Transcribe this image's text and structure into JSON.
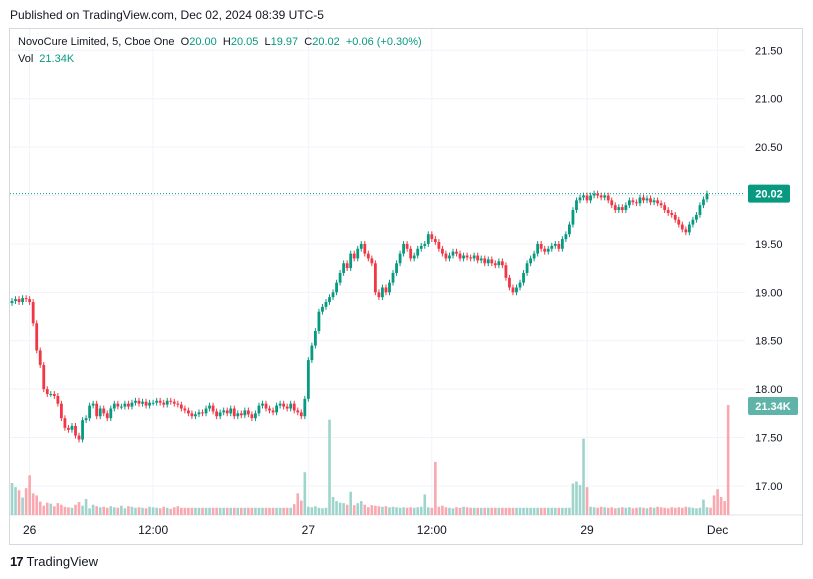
{
  "header": {
    "published": "Published on TradingView.com, Dec 02, 2024 08:39 UTC-5"
  },
  "legend": {
    "symbol": "NovoCure Limited, 5, Cboe One",
    "o_label": "O",
    "o": "20.00",
    "h_label": "H",
    "h": "20.05",
    "l_label": "L",
    "l": "19.97",
    "c_label": "C",
    "c": "20.02",
    "change": "+0.06 (+0.30%)",
    "vol_label": "Vol",
    "vol": "21.34K"
  },
  "footer": {
    "brand": "TradingView",
    "logo_glyph": "17"
  },
  "colors": {
    "up": "#089981",
    "down": "#f23645",
    "up_vol": "#9fd4cd",
    "down_vol": "#f8a8ae",
    "grid": "#f0f3fa"
  },
  "chart_data": {
    "type": "candlestick",
    "y_ticks": [
      "21.50",
      "21.00",
      "20.50",
      "20.00",
      "19.50",
      "19.00",
      "18.50",
      "18.00",
      "17.50",
      "17.00"
    ],
    "y_tick_values": [
      21.5,
      21.0,
      20.5,
      20.0,
      19.5,
      19.0,
      18.5,
      18.0,
      17.5,
      17.0
    ],
    "ylim": [
      16.7,
      21.72
    ],
    "x_ticks": [
      "26",
      "12:00",
      "27",
      "12:00",
      "29",
      "Dec"
    ],
    "x_tick_index": [
      5,
      40,
      84,
      119,
      163,
      200
    ],
    "last_price_label": "20.02",
    "last_price": 20.02,
    "last_volume_label": "21.34K",
    "last_volume": 21340,
    "vol_max": 21340,
    "closes": [
      18.91,
      18.93,
      18.9,
      18.94,
      18.93,
      18.9,
      18.68,
      18.4,
      18.25,
      18.0,
      17.95,
      17.95,
      17.93,
      17.85,
      17.7,
      17.6,
      17.58,
      17.62,
      17.52,
      17.48,
      17.68,
      17.7,
      17.83,
      17.85,
      17.72,
      17.8,
      17.75,
      17.7,
      17.8,
      17.85,
      17.82,
      17.82,
      17.85,
      17.82,
      17.86,
      17.88,
      17.85,
      17.87,
      17.83,
      17.86,
      17.86,
      17.88,
      17.86,
      17.84,
      17.88,
      17.87,
      17.85,
      17.84,
      17.8,
      17.78,
      17.75,
      17.72,
      17.74,
      17.76,
      17.75,
      17.8,
      17.83,
      17.77,
      17.72,
      17.76,
      17.78,
      17.75,
      17.8,
      17.72,
      17.75,
      17.73,
      17.78,
      17.74,
      17.7,
      17.75,
      17.83,
      17.85,
      17.8,
      17.78,
      17.76,
      17.83,
      17.85,
      17.82,
      17.8,
      17.85,
      17.78,
      17.76,
      17.72,
      17.9,
      18.3,
      18.45,
      18.6,
      18.8,
      18.85,
      18.9,
      18.95,
      19.0,
      19.1,
      19.2,
      19.3,
      19.25,
      19.4,
      19.35,
      19.45,
      19.5,
      19.4,
      19.35,
      19.3,
      19.0,
      18.95,
      19.05,
      19.0,
      19.1,
      19.2,
      19.3,
      19.4,
      19.5,
      19.45,
      19.35,
      19.38,
      19.45,
      19.48,
      19.5,
      19.6,
      19.55,
      19.52,
      19.45,
      19.4,
      19.35,
      19.38,
      19.42,
      19.4,
      19.35,
      19.38,
      19.36,
      19.35,
      19.38,
      19.33,
      19.35,
      19.3,
      19.34,
      19.3,
      19.28,
      19.32,
      19.28,
      19.15,
      19.05,
      19.0,
      19.05,
      19.1,
      19.2,
      19.3,
      19.35,
      19.4,
      19.5,
      19.45,
      19.42,
      19.45,
      19.48,
      19.5,
      19.45,
      19.55,
      19.6,
      19.7,
      19.85,
      19.95,
      19.98,
      20.0,
      19.95,
      20.0,
      20.02,
      20.0,
      19.98,
      20.0,
      19.95,
      19.9,
      19.85,
      19.88,
      19.85,
      19.9,
      19.95,
      19.93,
      19.92,
      19.98,
      19.95,
      19.97,
      19.93,
      19.95,
      19.92,
      19.9,
      19.85,
      19.82,
      19.8,
      19.75,
      19.7,
      19.65,
      19.62,
      19.7,
      19.75,
      19.8,
      19.9,
      19.96,
      20.02
    ],
    "volumes": [
      6200,
      5400,
      4800,
      3400,
      5200,
      7700,
      4200,
      3800,
      2600,
      1800,
      2400,
      2200,
      1700,
      2300,
      2000,
      1600,
      1500,
      1400,
      2000,
      2500,
      1800,
      3100,
      1300,
      2000,
      1700,
      1500,
      1600,
      1400,
      1700,
      1500,
      1400,
      1800,
      1300,
      1700,
      1600,
      1400,
      1500,
      1400,
      1300,
      1600,
      1500,
      1400,
      1300,
      1600,
      1400,
      1200,
      1500,
      1700,
      1400,
      1400,
      1400,
      1400,
      1400,
      1400,
      1400,
      1400,
      1400,
      1400,
      1400,
      1400,
      1400,
      1400,
      1400,
      1400,
      1400,
      1400,
      1400,
      1400,
      1400,
      1400,
      1400,
      1400,
      1400,
      1400,
      1400,
      1400,
      1400,
      1400,
      1400,
      1400,
      2100,
      4200,
      2800,
      8300,
      1600,
      1500,
      1700,
      1400,
      1300,
      1400,
      18500,
      3500,
      2700,
      2400,
      2300,
      2000,
      4500,
      1900,
      2300,
      2700,
      2000,
      1500,
      1900,
      1800,
      1700,
      1600,
      1700,
      1500,
      1600,
      1500,
      1400,
      1500,
      1400,
      1500,
      1400,
      1500,
      1600,
      4000,
      1500,
      1400,
      10300,
      1600,
      1800,
      1500,
      1400,
      1300,
      1500,
      1400,
      1600,
      1500,
      1400,
      1400,
      1400,
      1400,
      1400,
      1400,
      1400,
      1400,
      1400,
      1400,
      1400,
      1400,
      1400,
      1400,
      1400,
      1400,
      1400,
      1400,
      1400,
      1400,
      1400,
      1400,
      1400,
      1400,
      1400,
      1400,
      1400,
      1400,
      1400,
      6100,
      6500,
      5800,
      14800,
      5400,
      1600,
      1500,
      1400,
      1600,
      1500,
      1400,
      1500,
      1300,
      1400,
      1500,
      1400,
      1500,
      1300,
      1400,
      1500,
      1400,
      1300,
      1500,
      1400,
      1600,
      1500,
      1400,
      1300,
      1500,
      1400,
      1500,
      1400,
      1600,
      1500,
      1400,
      1300,
      1400,
      3000,
      1500,
      1400,
      3800,
      5000,
      3500,
      2700,
      21340
    ]
  }
}
